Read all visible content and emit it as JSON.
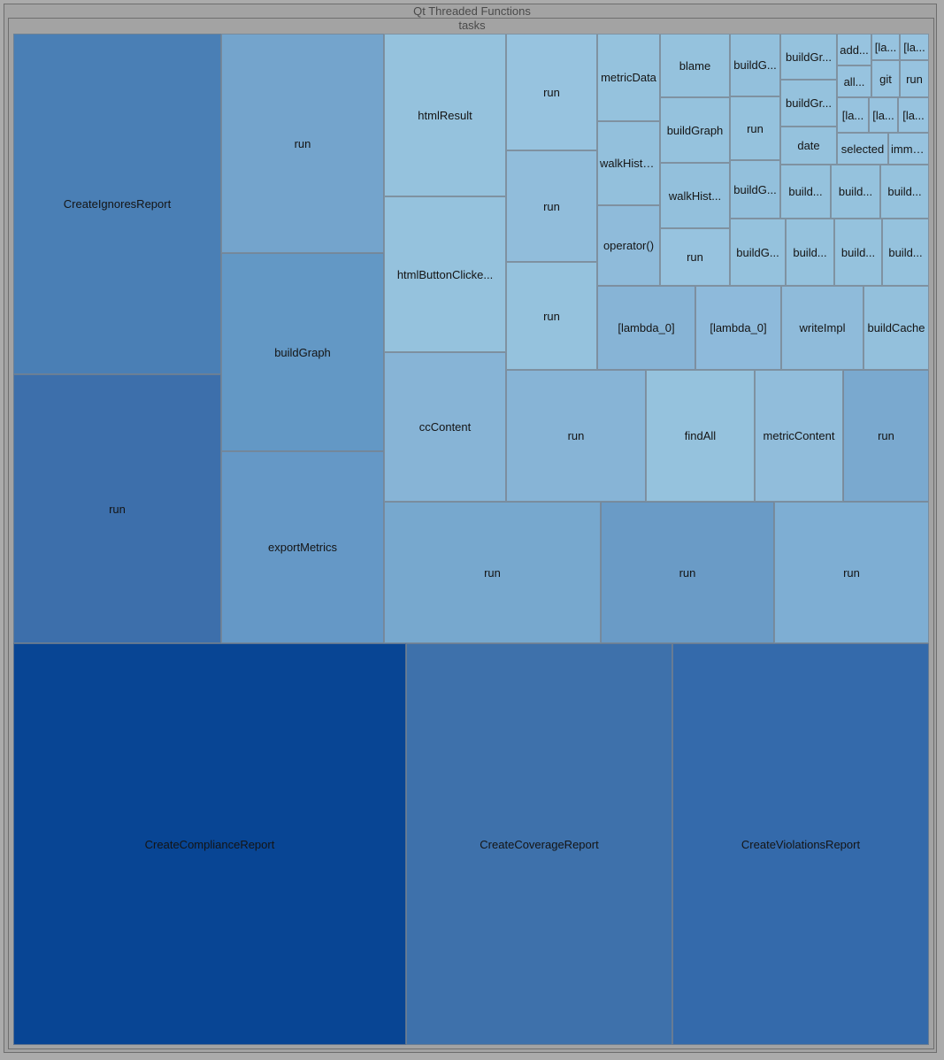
{
  "title": "Qt Threaded Functions",
  "subtitle": "tasks",
  "chart_data": {
    "type": "treemap",
    "title": "Qt Threaded Functions",
    "root": "tasks",
    "cells": [
      {
        "label": "CreateIgnoresReport",
        "color": "#4a7fb5"
      },
      {
        "label": "run",
        "color": "#3d6fab"
      },
      {
        "label": "run",
        "color": "#74a4cc"
      },
      {
        "label": "buildGraph",
        "color": "#6398c5"
      },
      {
        "label": "exportMetrics",
        "color": "#6598c6"
      },
      {
        "label": "htmlResult",
        "color": "#95c2dd"
      },
      {
        "label": "htmlButtonClicke...",
        "color": "#95c2dd"
      },
      {
        "label": "ccContent",
        "color": "#87b4d6"
      },
      {
        "label": "run",
        "color": "#97c3df"
      },
      {
        "label": "run",
        "color": "#91bddb"
      },
      {
        "label": "run",
        "color": "#95c2dd"
      },
      {
        "label": "metricData",
        "color": "#95c2dd"
      },
      {
        "label": "walkHistory",
        "color": "#93c0dc"
      },
      {
        "label": "operator()",
        "color": "#8fbbda"
      },
      {
        "label": "blame",
        "color": "#95c2dd"
      },
      {
        "label": "buildGraph",
        "color": "#95c2dd"
      },
      {
        "label": "walkHist...",
        "color": "#93c0dc"
      },
      {
        "label": "run",
        "color": "#97c3df"
      },
      {
        "label": "buildG...",
        "color": "#93c0dc"
      },
      {
        "label": "run",
        "color": "#95c2dd"
      },
      {
        "label": "buildG...",
        "color": "#93c0dc"
      },
      {
        "label": "buildG...",
        "color": "#95c2dd"
      },
      {
        "label": "buildGr...",
        "color": "#95c2dd"
      },
      {
        "label": "buildGr...",
        "color": "#95c2dd"
      },
      {
        "label": "date",
        "color": "#95c2dd"
      },
      {
        "label": "add...",
        "color": "#97c3df"
      },
      {
        "label": "[la...",
        "color": "#97c3df"
      },
      {
        "label": "[la...",
        "color": "#97c3df"
      },
      {
        "label": "all...",
        "color": "#97c3df"
      },
      {
        "label": "git",
        "color": "#97c3df"
      },
      {
        "label": "run",
        "color": "#97c3df"
      },
      {
        "label": "[la...",
        "color": "#97c3df"
      },
      {
        "label": "[la...",
        "color": "#97c3df"
      },
      {
        "label": "[la...",
        "color": "#97c3df"
      },
      {
        "label": "selected",
        "color": "#97c3df"
      },
      {
        "label": "imme...",
        "color": "#97c3df"
      },
      {
        "label": "build...",
        "color": "#95c2dd"
      },
      {
        "label": "build...",
        "color": "#95c2dd"
      },
      {
        "label": "build...",
        "color": "#95c2dd"
      },
      {
        "label": "build...",
        "color": "#95c2dd"
      },
      {
        "label": "build...",
        "color": "#95c2dd"
      },
      {
        "label": "build...",
        "color": "#95c2dd"
      },
      {
        "label": "[lambda_0]",
        "color": "#87b4d6"
      },
      {
        "label": "[lambda_0]",
        "color": "#8ebadb"
      },
      {
        "label": "writeImpl",
        "color": "#8fbbda"
      },
      {
        "label": "buildCache",
        "color": "#93c0dc"
      },
      {
        "label": "run",
        "color": "#87b4d6"
      },
      {
        "label": "findAll",
        "color": "#95c2dd"
      },
      {
        "label": "metricContent",
        "color": "#91bddb"
      },
      {
        "label": "run",
        "color": "#7aa9cf"
      },
      {
        "label": "run",
        "color": "#77a8ce"
      },
      {
        "label": "run",
        "color": "#6a9bc6"
      },
      {
        "label": "run",
        "color": "#7eaed3"
      },
      {
        "label": "CreateComplianceReport",
        "color": "#084594"
      },
      {
        "label": "CreateCoverageReport",
        "color": "#3e71ab"
      },
      {
        "label": "CreateViolationsReport",
        "color": "#346aab"
      }
    ]
  }
}
